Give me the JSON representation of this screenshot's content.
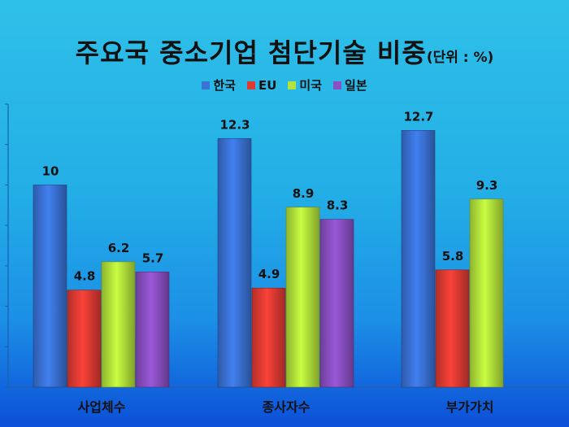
{
  "chart_data": {
    "type": "bar",
    "title": "주요국 중소기업 첨단기술 비중",
    "unit_label": "(단위 : %)",
    "categories": [
      "사업체수",
      "종사자수",
      "부가가치"
    ],
    "series": [
      {
        "name": "한국",
        "color": "#3a72d6",
        "values": [
          10,
          12.3,
          12.7
        ],
        "labels": [
          "10",
          "12.3",
          "12.7"
        ]
      },
      {
        "name": "EU",
        "color": "#df3b33",
        "values": [
          4.8,
          4.9,
          5.8
        ],
        "labels": [
          "4.8",
          "4.9",
          "5.8"
        ]
      },
      {
        "name": "미국",
        "color": "#b3e23a",
        "values": [
          6.2,
          8.9,
          9.3
        ],
        "labels": [
          "6.2",
          "8.9",
          "9.3"
        ]
      },
      {
        "name": "일본",
        "color": "#8a4fc2",
        "values": [
          5.7,
          8.3,
          null
        ],
        "labels": [
          "5.7",
          "8.3",
          ""
        ]
      }
    ],
    "ylim": [
      0,
      14
    ],
    "legend_position": "top-center",
    "grid": false
  }
}
